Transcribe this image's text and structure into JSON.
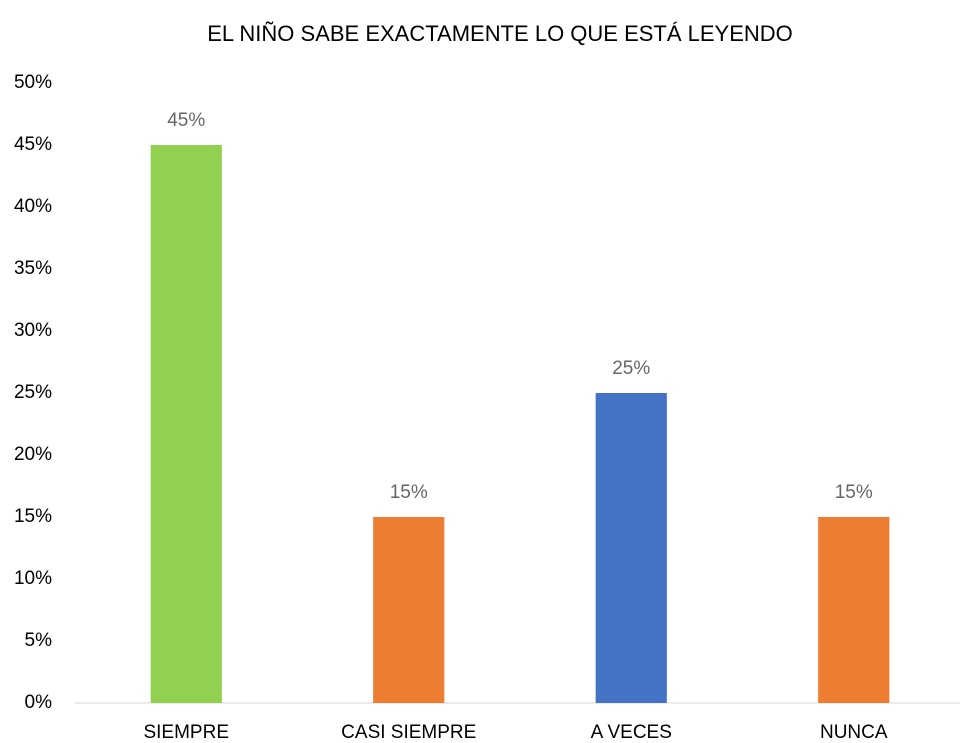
{
  "chart_data": {
    "type": "bar",
    "title": "EL NIÑO SABE EXACTAMENTE LO QUE ESTÁ LEYENDO",
    "categories": [
      "SIEMPRE",
      "CASI SIEMPRE",
      "A VECES",
      "NUNCA"
    ],
    "values": [
      45,
      15,
      25,
      15
    ],
    "value_labels": [
      "45%",
      "15%",
      "25%",
      "15%"
    ],
    "colors": [
      "#92d050",
      "#ed7d31",
      "#4472c4",
      "#ed7d31"
    ],
    "ylim": [
      0,
      50
    ],
    "yticks": [
      {
        "value": 0,
        "label": "0%"
      },
      {
        "value": 5,
        "label": "5%"
      },
      {
        "value": 10,
        "label": "10%"
      },
      {
        "value": 15,
        "label": "15%"
      },
      {
        "value": 20,
        "label": "20%"
      },
      {
        "value": 25,
        "label": "25%"
      },
      {
        "value": 30,
        "label": "30%"
      },
      {
        "value": 35,
        "label": "35%"
      },
      {
        "value": 40,
        "label": "40%"
      },
      {
        "value": 45,
        "label": "45%"
      },
      {
        "value": 50,
        "label": "50%"
      }
    ],
    "grid": false
  }
}
